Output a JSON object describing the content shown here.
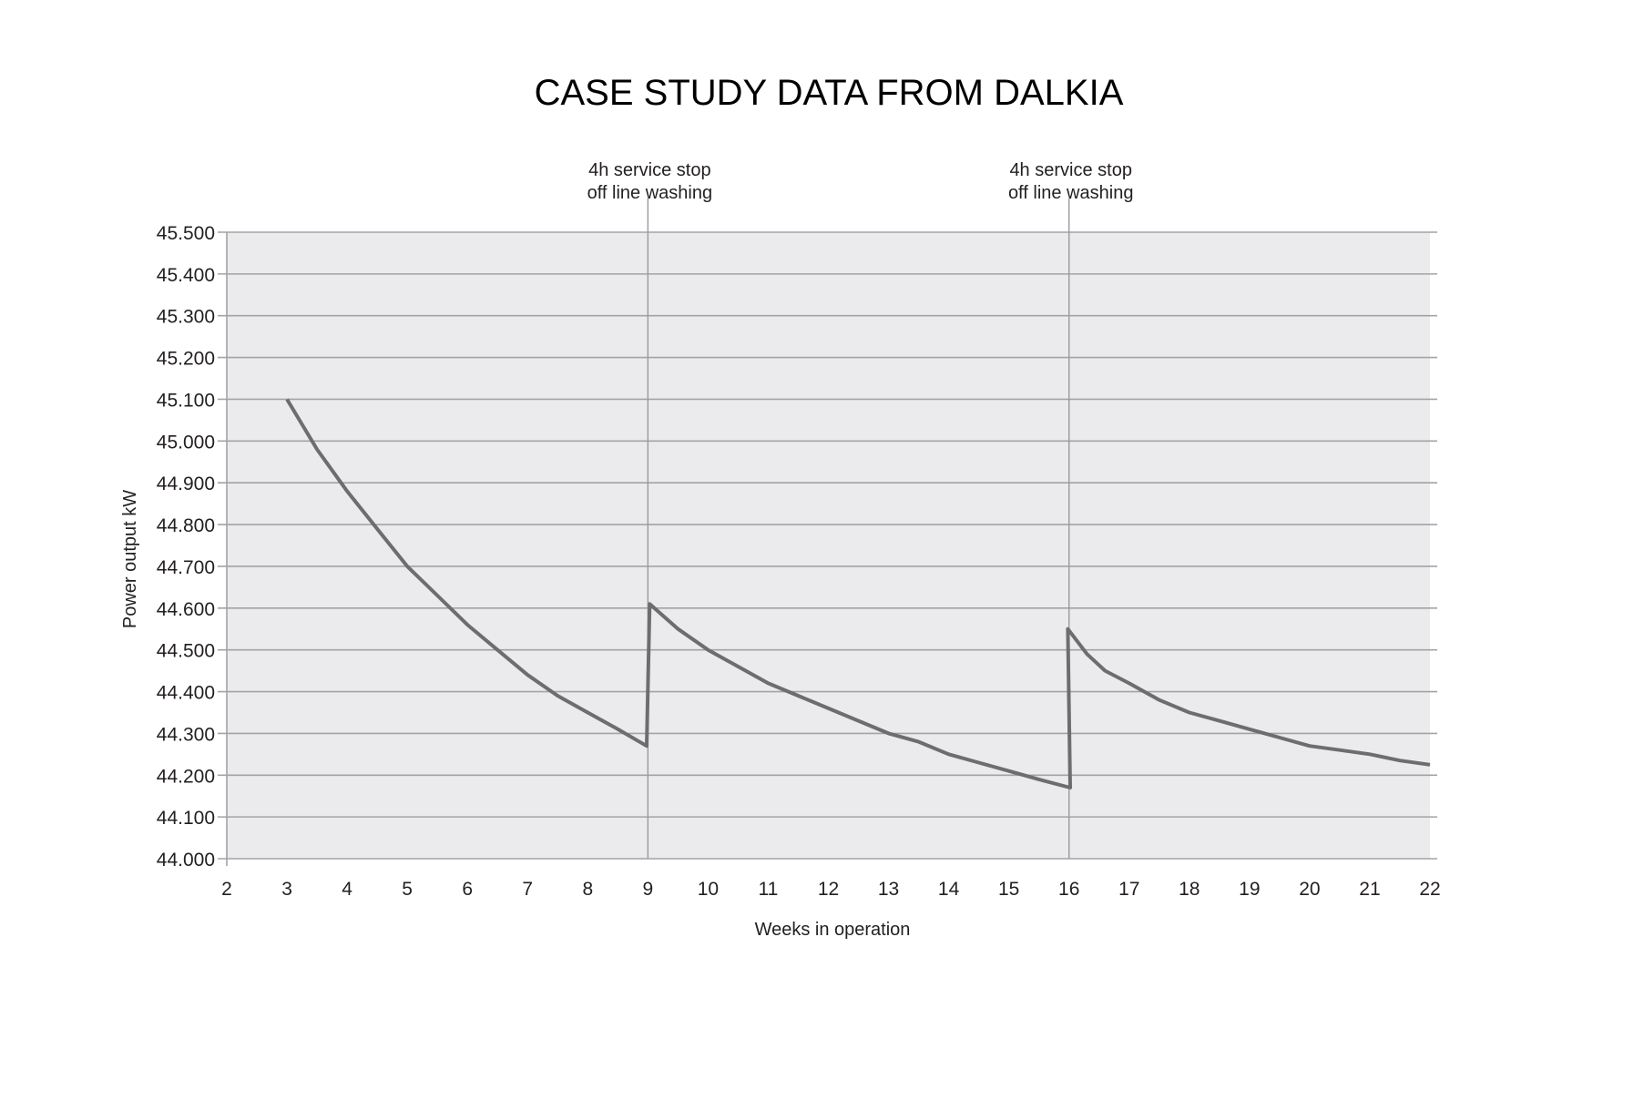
{
  "chart_data": {
    "type": "line",
    "title": "CASE STUDY DATA FROM DALKIA",
    "xlabel": "Weeks in operation",
    "ylabel": "Power output kW",
    "xlim": [
      2,
      22
    ],
    "ylim": [
      44.0,
      45.5
    ],
    "x_ticks": [
      "2",
      "3",
      "4",
      "5",
      "6",
      "7",
      "8",
      "9",
      "10",
      "11",
      "12",
      "13",
      "14",
      "15",
      "16",
      "17",
      "18",
      "19",
      "20",
      "21",
      "22"
    ],
    "y_ticks": [
      {
        "value": 44.0,
        "label": "44.000"
      },
      {
        "value": 44.1,
        "label": "44.100"
      },
      {
        "value": 44.2,
        "label": "44.200"
      },
      {
        "value": 44.3,
        "label": "44.300"
      },
      {
        "value": 44.4,
        "label": "44.400"
      },
      {
        "value": 44.5,
        "label": "44.500"
      },
      {
        "value": 44.6,
        "label": "44.600"
      },
      {
        "value": 44.7,
        "label": "44.700"
      },
      {
        "value": 44.8,
        "label": "44.800"
      },
      {
        "value": 44.9,
        "label": "44.900"
      },
      {
        "value": 45.0,
        "label": "45.000"
      },
      {
        "value": 45.1,
        "label": "45.100"
      },
      {
        "value": 45.2,
        "label": "45.200"
      },
      {
        "value": 45.3,
        "label": "45.300"
      },
      {
        "value": 45.4,
        "label": "45.400"
      },
      {
        "value": 45.5,
        "label": "45.500"
      }
    ],
    "grid": true,
    "series": [
      {
        "name": "Power output",
        "color": "#6d6d70",
        "points": [
          [
            3,
            45.1
          ],
          [
            3.5,
            44.98
          ],
          [
            4,
            44.88
          ],
          [
            4.5,
            44.79
          ],
          [
            5,
            44.7
          ],
          [
            5.5,
            44.63
          ],
          [
            6,
            44.56
          ],
          [
            6.5,
            44.5
          ],
          [
            7,
            44.44
          ],
          [
            7.5,
            44.39
          ],
          [
            8,
            44.35
          ],
          [
            8.5,
            44.31
          ],
          [
            8.98,
            44.27
          ],
          [
            9.03,
            44.61
          ],
          [
            9.5,
            44.55
          ],
          [
            10,
            44.5
          ],
          [
            10.5,
            44.46
          ],
          [
            11,
            44.42
          ],
          [
            11.5,
            44.39
          ],
          [
            12,
            44.36
          ],
          [
            12.5,
            44.33
          ],
          [
            13,
            44.3
          ],
          [
            13.5,
            44.28
          ],
          [
            14,
            44.25
          ],
          [
            14.5,
            44.23
          ],
          [
            15,
            44.21
          ],
          [
            15.5,
            44.19
          ],
          [
            16.02,
            44.17
          ],
          [
            15.98,
            44.55
          ],
          [
            16.3,
            44.49
          ],
          [
            16.6,
            44.45
          ],
          [
            17,
            44.42
          ],
          [
            17.5,
            44.38
          ],
          [
            18,
            44.35
          ],
          [
            18.5,
            44.33
          ],
          [
            19,
            44.31
          ],
          [
            19.5,
            44.29
          ],
          [
            20,
            44.27
          ],
          [
            20.5,
            44.26
          ],
          [
            21,
            44.25
          ],
          [
            21.5,
            44.235
          ],
          [
            22,
            44.225
          ]
        ]
      }
    ],
    "annotations": [
      {
        "x": 9,
        "line1": "4h service stop",
        "line2": "off line washing"
      },
      {
        "x": 16,
        "line1": "4h service stop",
        "line2": "off line washing"
      }
    ],
    "colors": {
      "plot_bg": "#ebebed",
      "grid": "#a3a3a5",
      "line": "#6d6d70"
    }
  }
}
